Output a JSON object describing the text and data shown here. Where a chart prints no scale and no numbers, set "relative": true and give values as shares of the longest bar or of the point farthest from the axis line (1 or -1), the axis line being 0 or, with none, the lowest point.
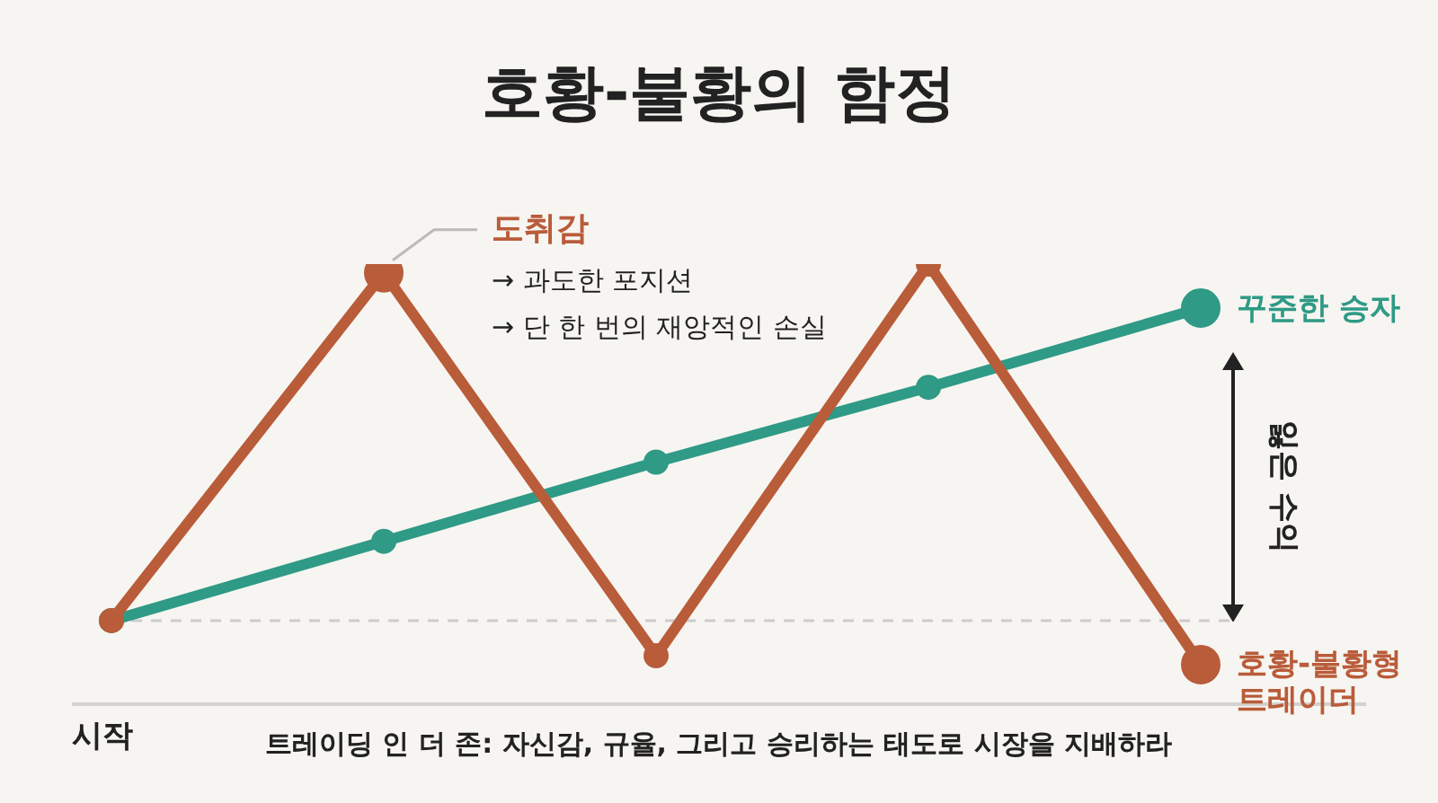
{
  "chart_data": {
    "type": "line",
    "title": "호황-불황의 함정",
    "xlabel": "시작",
    "relative": true,
    "categories": [
      null,
      null,
      null,
      null,
      null
    ],
    "series": [
      {
        "name": "호황-불황형 트레이더",
        "color": "#b95c3a",
        "values": [
          0.19,
          0.98,
          0.11,
          1,
          0.09
        ]
      },
      {
        "name": "꾸준한 승자",
        "color": "#2f9a86",
        "values": [
          0.19,
          0.37,
          0.55,
          0.72,
          0.9
        ]
      }
    ],
    "marker": "circle",
    "ref_lines": [
      {
        "axis": "y",
        "value": 0.19,
        "color": "#cccccc",
        "line_style": "dashed"
      }
    ],
    "annotations": [
      "도취감",
      "→ 과도한 포지션",
      "→ 단 한 번의 재앙적인 손실",
      "잃은 수익",
      "트레이딩 인 더 존: 자신감, 규율, 그리고 승리하는 태도로 시장을 지배하라"
    ]
  }
}
